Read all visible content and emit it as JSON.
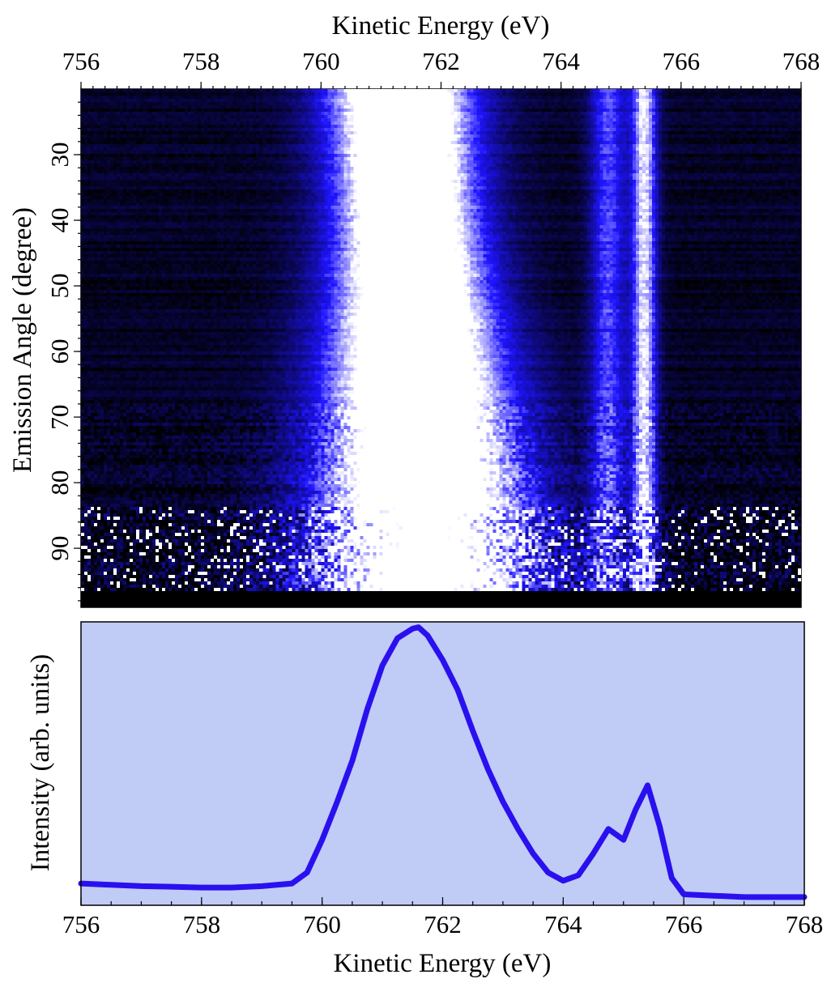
{
  "colors": {
    "heatmap_low": "#000000",
    "heatmap_mid": "#1e14ff",
    "heatmap_high": "#ffffff",
    "line": "#2a10ee",
    "plot_background": "#c0cbf6"
  },
  "chart_data": [
    {
      "type": "heatmap",
      "xlabel": "Kinetic Energy (eV)",
      "ylabel": "Emission Angle (degree)",
      "xlim": [
        756,
        768
      ],
      "ylim": [
        99,
        20
      ],
      "x_axis_position": "top",
      "x_ticks": [
        "756",
        "758",
        "760",
        "762",
        "764",
        "766",
        "768"
      ],
      "y_ticks": [
        "30",
        "40",
        "50",
        "60",
        "70",
        "80",
        "90"
      ],
      "colormap": "black-blue-white",
      "features": [
        {
          "center_ev": 761.5,
          "fwhm_ev": 1.9,
          "relative_intensity": 1.0
        },
        {
          "center_ev": 764.8,
          "fwhm_ev": 0.5,
          "relative_intensity": 0.35
        },
        {
          "center_ev": 765.4,
          "fwhm_ev": 0.35,
          "relative_intensity": 0.55
        }
      ]
    },
    {
      "type": "line",
      "xlabel": "Kinetic Energy (eV)",
      "ylabel": "Intensity (arb. units)",
      "xlim": [
        756,
        768
      ],
      "ylim": [
        -0.02,
        1.02
      ],
      "x_ticks": [
        "756",
        "758",
        "760",
        "762",
        "764",
        "766",
        "768"
      ],
      "y_ticks_shown": false,
      "series": [
        {
          "x": [
            756.0,
            756.5,
            757.0,
            757.5,
            758.0,
            758.5,
            759.0,
            759.5,
            759.75,
            760.0,
            760.25,
            760.5,
            760.75,
            761.0,
            761.25,
            761.5,
            761.6,
            761.75,
            762.0,
            762.25,
            762.5,
            762.75,
            763.0,
            763.25,
            763.5,
            763.75,
            764.0,
            764.25,
            764.5,
            764.75,
            765.0,
            765.2,
            765.4,
            765.6,
            765.8,
            766.0,
            766.5,
            767.0,
            767.5,
            768.0
          ],
          "values": [
            0.06,
            0.055,
            0.05,
            0.048,
            0.045,
            0.045,
            0.05,
            0.06,
            0.1,
            0.22,
            0.36,
            0.51,
            0.7,
            0.86,
            0.96,
            0.995,
            1.0,
            0.97,
            0.88,
            0.77,
            0.62,
            0.48,
            0.36,
            0.26,
            0.17,
            0.1,
            0.07,
            0.09,
            0.17,
            0.26,
            0.22,
            0.33,
            0.42,
            0.27,
            0.08,
            0.02,
            0.015,
            0.01,
            0.01,
            0.01
          ]
        }
      ]
    }
  ]
}
